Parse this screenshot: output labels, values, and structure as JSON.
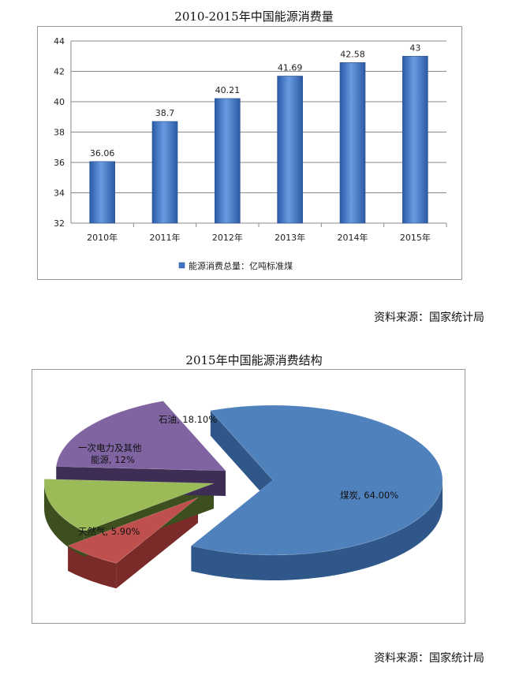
{
  "charts": [
    {
      "title": "2010-2015年中国能源消费量",
      "source": "资料来源：国家统计局"
    },
    {
      "title": "2015年中国能源消费结构",
      "source": "资料来源：国家统计局"
    }
  ],
  "chart_data": [
    {
      "type": "bar",
      "title": "2010-2015年中国能源消费量",
      "categories": [
        "2010年",
        "2011年",
        "2012年",
        "2013年",
        "2014年",
        "2015年"
      ],
      "series": [
        {
          "name": "能源消费总量：亿吨标准煤",
          "values": [
            36.06,
            38.7,
            40.21,
            41.69,
            42.58,
            43
          ],
          "labels": [
            "36.06",
            "38.7",
            "40.21",
            "41.69",
            "42.58",
            "43"
          ],
          "color": "#3f74c4"
        }
      ],
      "ylim": [
        32,
        44
      ],
      "yticks": [
        "32",
        "34",
        "36",
        "38",
        "40",
        "42",
        "44"
      ],
      "grid": true,
      "legend": "bottom"
    },
    {
      "type": "pie",
      "title": "2015年中国能源消费结构",
      "slices": [
        {
          "label": "煤炭, 64.00%",
          "value": 64.0,
          "color": "#4f81bd",
          "side": "#2f578a"
        },
        {
          "label": "天然气, 5.90%",
          "value": 5.9,
          "color": "#c0504d",
          "side": "#7a2a28"
        },
        {
          "label": "一次电力及其他能源, 12%",
          "value": 12,
          "color": "#9bbb59",
          "side": "#3d4f1f"
        },
        {
          "label": "石油, 18.10%",
          "value": 18.1,
          "color": "#8064a2",
          "side": "#3e2d55"
        }
      ]
    }
  ]
}
